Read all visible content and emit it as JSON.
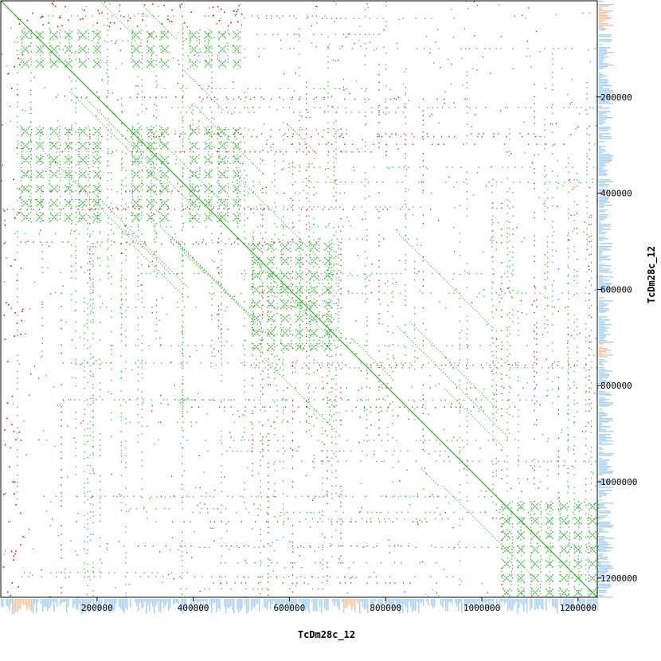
{
  "chart_data": {
    "type": "scatter",
    "title": "",
    "xlabel": "TcDm28c_12",
    "ylabel": "TcDm28c_12",
    "xlim": [
      0,
      1240000
    ],
    "ylim": [
      0,
      1240000
    ],
    "y_axis_inverted": true,
    "y_axis_side": "right",
    "x_ticks": [
      200000,
      400000,
      600000,
      800000,
      1000000,
      1200000
    ],
    "x_tick_labels": [
      "200000",
      "400000",
      "600000",
      "800000",
      "1000000",
      "1200000"
    ],
    "y_ticks": [
      200000,
      400000,
      600000,
      800000,
      1000000,
      1200000
    ],
    "y_tick_labels": [
      "200000",
      "400000",
      "600000",
      "800000",
      "1000000",
      "1200000"
    ],
    "grid": false,
    "legend": "none",
    "colors": {
      "forward_match": "#22bb22",
      "reverse_match": "#cc1111",
      "coverage_histogram": "#aad4f8",
      "coverage_histogram_high": "#f8c9a0",
      "frame": "#000000"
    },
    "series": [
      {
        "name": "",
        "role": "main-diagonal",
        "x": [
          0,
          1240000
        ],
        "y": [
          0,
          1240000
        ]
      }
    ],
    "repeat_block_regions": [
      {
        "x": [
          40000,
          200000
        ],
        "y": [
          60000,
          130000
        ]
      },
      {
        "x": [
          40000,
          200000
        ],
        "y": [
          260000,
          460000
        ]
      },
      {
        "x": [
          270000,
          340000
        ],
        "y": [
          60000,
          130000
        ]
      },
      {
        "x": [
          270000,
          340000
        ],
        "y": [
          260000,
          460000
        ]
      },
      {
        "x": [
          390000,
          500000
        ],
        "y": [
          60000,
          130000
        ]
      },
      {
        "x": [
          390000,
          500000
        ],
        "y": [
          260000,
          460000
        ]
      },
      {
        "x": [
          520000,
          700000
        ],
        "y": [
          500000,
          720000
        ]
      },
      {
        "x": [
          1040000,
          1240000
        ],
        "y": [
          1040000,
          1240000
        ]
      }
    ]
  }
}
